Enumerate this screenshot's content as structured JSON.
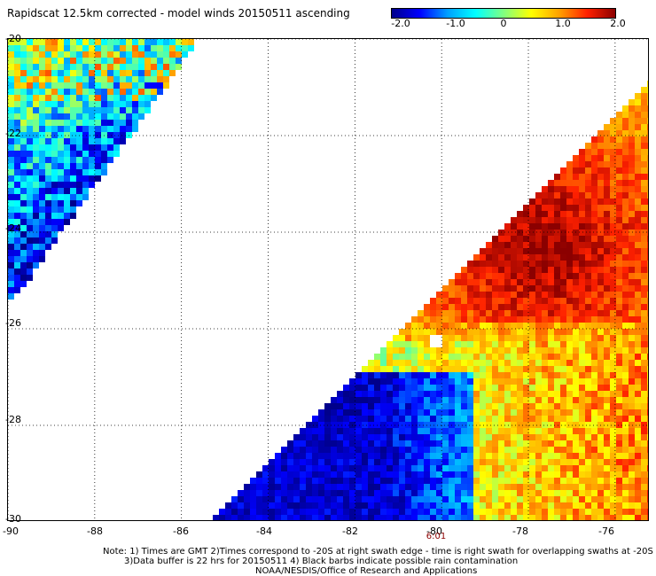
{
  "title": "Rapidscat 12.5km corrected - model winds 20150511 ascending",
  "colorbar": {
    "ticks": [
      "-2.0",
      "-1.0",
      "0",
      "1.0",
      "2.0"
    ],
    "colors": [
      "#00008b",
      "#0000ff",
      "#00a0ff",
      "#00ffff",
      "#80ff80",
      "#ffff00",
      "#ffa000",
      "#ff2000",
      "#8b0000"
    ]
  },
  "axes": {
    "x_ticks": [
      "-90",
      "-88",
      "-86",
      "-84",
      "-82",
      "-80",
      "-78",
      "-76"
    ],
    "y_ticks": [
      "-20",
      "-22",
      "-24",
      "-26",
      "-28",
      "-30"
    ],
    "xlim": [
      -90,
      -75.2
    ],
    "ylim": [
      -30,
      -20
    ],
    "grid": "dotted"
  },
  "time_label": "6:01",
  "notes": [
    "Note: 1) Times are GMT 2)Times correspond to -20S at right swath edge - time is right swath for overlapping swaths at -20S",
    "3)Data buffer is 22 hrs for 20150511 4) Black barbs indicate possible rain contamination",
    "NOAA/NESDIS/Office of Research and Applications"
  ]
}
